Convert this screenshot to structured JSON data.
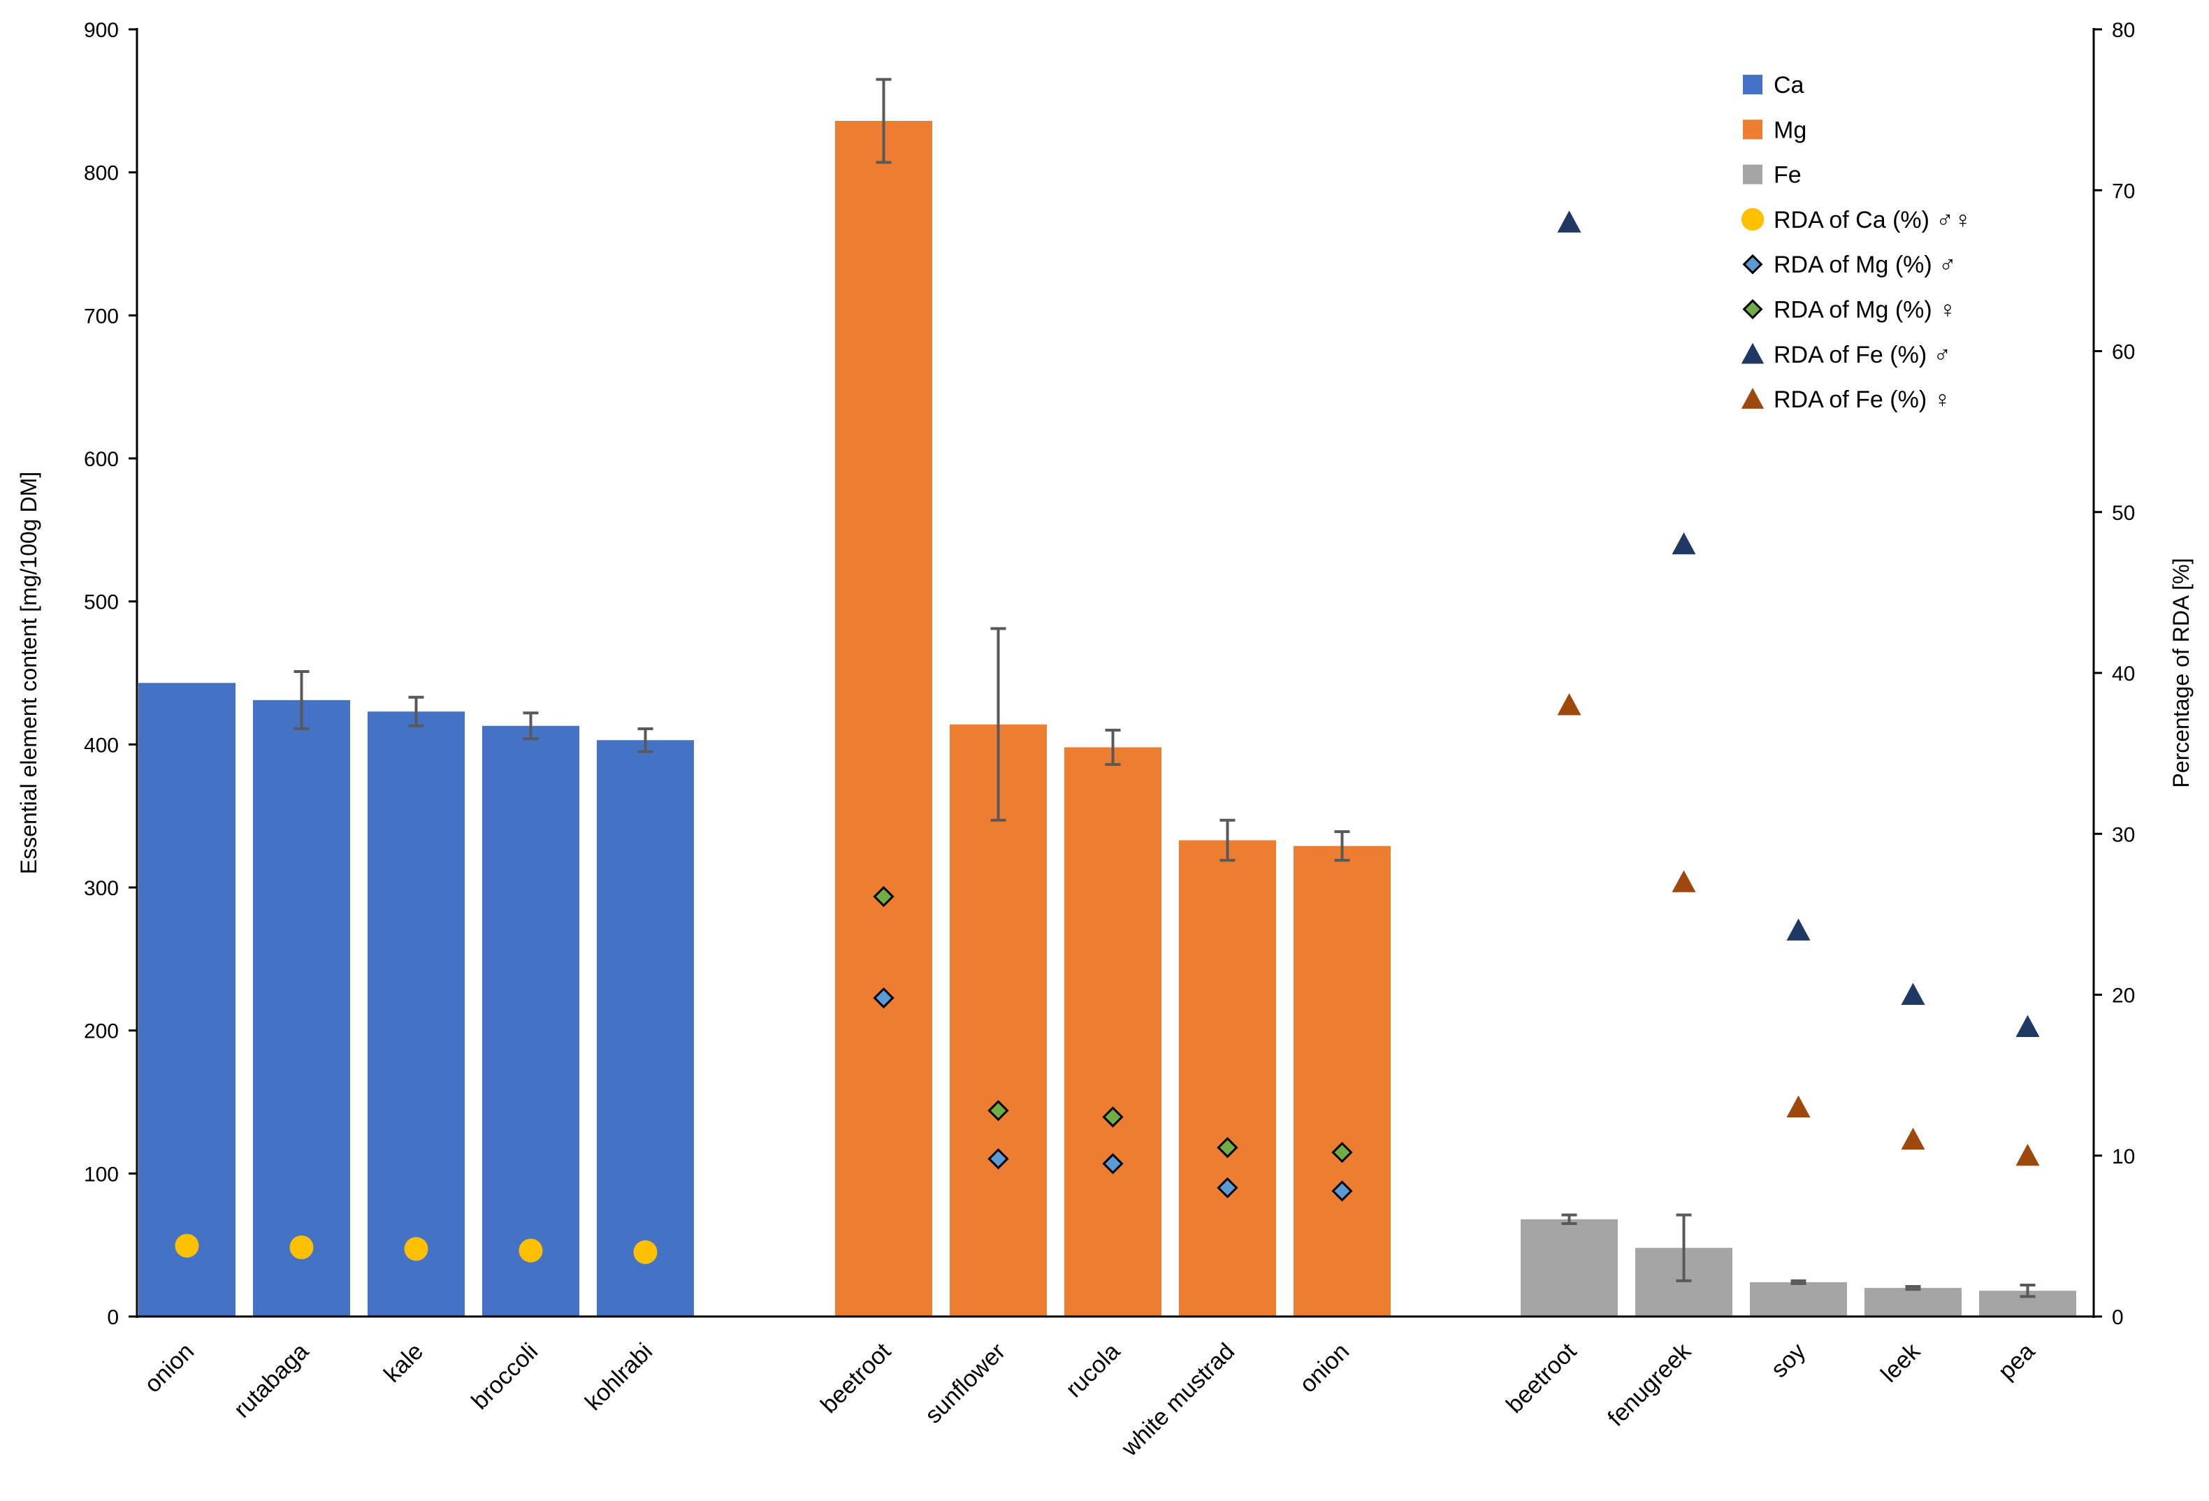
{
  "chart_data": {
    "type": "bar",
    "title": "",
    "ylabel": "Essential element content [mg/100g DM]",
    "y2label": "Percentage of RDA [%]",
    "ylim": [
      0,
      900
    ],
    "y2lim": [
      0,
      80
    ],
    "yticks": [
      "0",
      "100",
      "200",
      "300",
      "400",
      "500",
      "600",
      "700",
      "800",
      "900"
    ],
    "y2ticks": [
      "0",
      "10",
      "20",
      "30",
      "40",
      "50",
      "60",
      "70",
      "80"
    ],
    "legend_position": "top-right",
    "groups": [
      {
        "element": "Ca",
        "color": "#4472C4",
        "categories": [
          "onion",
          "rutabaga",
          "kale",
          "broccoli",
          "kohlrabi"
        ],
        "values": [
          443,
          431,
          423,
          413,
          403
        ],
        "errors": [
          0,
          20,
          10,
          9,
          8
        ],
        "rda": [
          {
            "name": "RDA of Ca (%) ♂♀",
            "marker": "circle",
            "color": "#FFC000",
            "values": [
              4.4,
              4.3,
              4.2,
              4.1,
              4.0
            ]
          }
        ]
      },
      {
        "element": "Mg",
        "color": "#ED7D31",
        "categories": [
          "beetroot",
          "sunflower",
          "rucola",
          "white mustrad",
          "onion"
        ],
        "values": [
          836,
          414,
          398,
          333,
          329
        ],
        "errors": [
          29,
          67,
          12,
          14,
          10
        ],
        "rda": [
          {
            "name": "RDA of Mg (%) ♂",
            "marker": "diamond",
            "color": "#5B9BD5",
            "values": [
              19.8,
              9.8,
              9.5,
              8.0,
              7.8
            ]
          },
          {
            "name": "RDA of Mg (%) ♀",
            "marker": "diamond",
            "color": "#70AD47",
            "values": [
              26.1,
              12.8,
              12.4,
              10.5,
              10.2
            ]
          }
        ]
      },
      {
        "element": "Fe",
        "color": "#A5A5A5",
        "categories": [
          "beetroot",
          "fenugreek",
          "soy",
          "leek",
          "pea"
        ],
        "values": [
          68,
          48,
          24,
          20,
          18
        ],
        "errors": [
          3,
          23,
          1,
          1,
          4
        ],
        "rda": [
          {
            "name": "RDA of Fe (%) ♂",
            "marker": "triangle",
            "color": "#203864",
            "values": [
              68,
              48,
              24,
              20,
              18
            ]
          },
          {
            "name": "RDA of Fe (%) ♀",
            "marker": "triangle",
            "color": "#9E480E",
            "values": [
              38,
              27,
              13,
              11,
              10
            ]
          }
        ]
      }
    ],
    "legend": [
      {
        "label": "Ca",
        "marker": "square",
        "color": "#4472C4"
      },
      {
        "label": "Mg",
        "marker": "square",
        "color": "#ED7D31"
      },
      {
        "label": "Fe",
        "marker": "square",
        "color": "#A5A5A5"
      },
      {
        "label": "RDA of Ca (%) ♂♀",
        "marker": "circle",
        "color": "#FFC000"
      },
      {
        "label": "RDA of Mg (%) ♂",
        "marker": "diamond",
        "color": "#5B9BD5"
      },
      {
        "label": "RDA of Mg (%) ♀",
        "marker": "diamond",
        "color": "#70AD47"
      },
      {
        "label": "RDA of Fe (%) ♂",
        "marker": "triangle",
        "color": "#203864"
      },
      {
        "label": "RDA of Fe (%) ♀",
        "marker": "triangle",
        "color": "#9E480E"
      }
    ]
  }
}
